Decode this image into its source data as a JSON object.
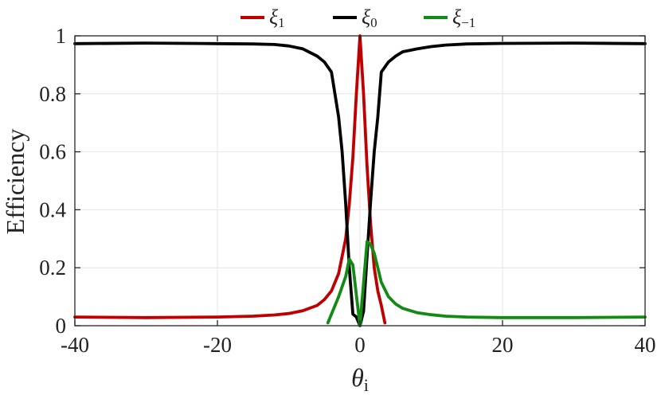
{
  "chart_data": {
    "type": "line",
    "xlabel_main": "θ",
    "xlabel_sub": "i",
    "ylabel": "Efficiency",
    "xlim": [
      -40,
      40
    ],
    "ylim": [
      0,
      1
    ],
    "xticks": [
      -40,
      -20,
      0,
      20,
      40
    ],
    "xtick_labels": [
      "-40",
      "-20",
      "0",
      "20",
      "40"
    ],
    "yticks": [
      0,
      0.2,
      0.4,
      0.6,
      0.8,
      1
    ],
    "ytick_labels": [
      "0",
      "0.2",
      "0.4",
      "0.6",
      "0.8",
      "1"
    ],
    "grid": true,
    "legend_position": "top-center",
    "series": [
      {
        "name": "ξ",
        "name_sub": "1",
        "color": "#c00000",
        "x": [
          -40,
          -30,
          -20,
          -15,
          -12,
          -10,
          -8,
          -6,
          -5,
          -4,
          -3,
          -2,
          -1.5,
          -1,
          -0.5,
          0,
          0.5,
          1,
          1.5,
          2,
          2.5,
          3,
          3.5
        ],
        "y": [
          0.03,
          0.028,
          0.03,
          0.033,
          0.037,
          0.042,
          0.052,
          0.07,
          0.09,
          0.12,
          0.18,
          0.3,
          0.42,
          0.58,
          0.8,
          1.0,
          0.8,
          0.55,
          0.35,
          0.2,
          0.12,
          0.07,
          0.01
        ]
      },
      {
        "name": "ξ",
        "name_sub": "0",
        "color": "#000000",
        "x": [
          -40,
          -30,
          -20,
          -15,
          -12,
          -10,
          -8,
          -6,
          -5,
          -4,
          -3,
          -2.5,
          -2,
          -1.5,
          -1,
          -0.5,
          0,
          0.5,
          1,
          1.5,
          2,
          2.5,
          3,
          4,
          5,
          6,
          8,
          10,
          12,
          15,
          20,
          30,
          40
        ],
        "y": [
          0.973,
          0.975,
          0.973,
          0.972,
          0.97,
          0.965,
          0.955,
          0.93,
          0.91,
          0.875,
          0.72,
          0.6,
          0.42,
          0.2,
          0.04,
          0.03,
          0.0,
          0.05,
          0.24,
          0.43,
          0.6,
          0.72,
          0.875,
          0.91,
          0.93,
          0.945,
          0.955,
          0.963,
          0.968,
          0.972,
          0.974,
          0.975,
          0.973
        ]
      },
      {
        "name": "ξ",
        "name_sub": "−1",
        "color": "#138a13",
        "x": [
          -4.5,
          -3,
          -2,
          -1.5,
          -1,
          0,
          1,
          1.5,
          2,
          2.5,
          3,
          4,
          5,
          6,
          8,
          10,
          12,
          15,
          20,
          30,
          40
        ],
        "y": [
          0.01,
          0.1,
          0.17,
          0.23,
          0.21,
          0.0,
          0.29,
          0.28,
          0.25,
          0.2,
          0.15,
          0.1,
          0.075,
          0.06,
          0.045,
          0.038,
          0.033,
          0.03,
          0.028,
          0.028,
          0.03
        ]
      }
    ]
  }
}
